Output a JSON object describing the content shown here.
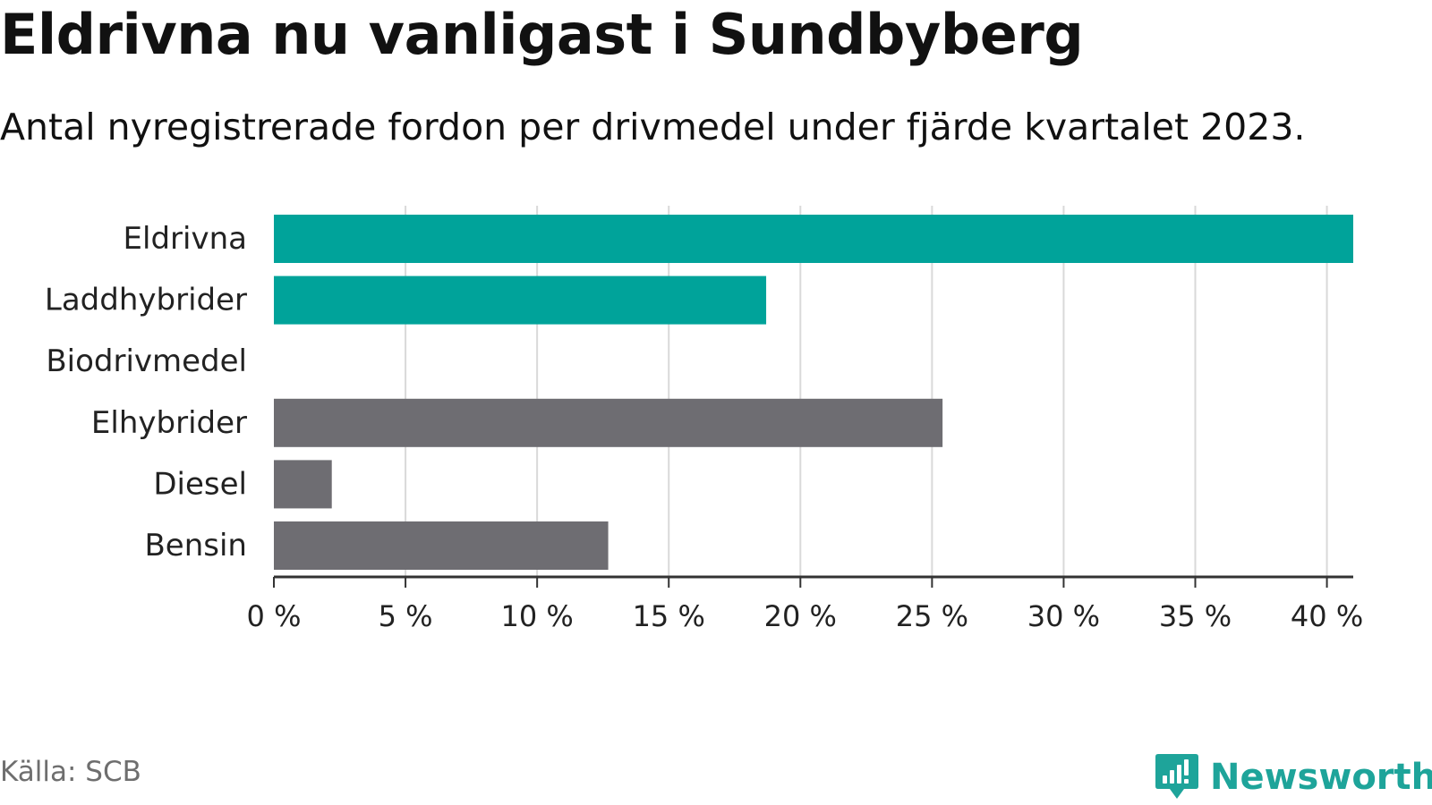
{
  "colors": {
    "green": "#00a39a",
    "gray": "#6e6d72",
    "grid": "#d9d9d9",
    "axis": "#333333",
    "brand": "#1ea49a"
  },
  "chart_data": {
    "type": "bar",
    "orientation": "horizontal",
    "title": "Eldrivna nu vanligast i Sundbyberg",
    "subtitle": "Antal nyregistrerade fordon per drivmedel under fjärde kvartalet 2023.",
    "categories": [
      "Eldrivna",
      "Laddhybrider",
      "Biodrivmedel",
      "Elhybrider",
      "Diesel",
      "Bensin"
    ],
    "values": [
      41,
      18.7,
      0,
      25.4,
      2.2,
      12.7
    ],
    "bar_colors": [
      "green",
      "green",
      "gray",
      "gray",
      "gray",
      "gray"
    ],
    "unit": "%",
    "xlim": [
      0,
      41
    ],
    "xticks": [
      0,
      5,
      10,
      15,
      20,
      25,
      30,
      35,
      40
    ],
    "xtick_labels": [
      "0 %",
      "5 %",
      "10 %",
      "15 %",
      "20 %",
      "25 %",
      "30 %",
      "35 %",
      "40 %"
    ],
    "grid": true,
    "legend": "none"
  },
  "footer": {
    "source": "Källa: SCB",
    "brand": "Newsworthy"
  }
}
